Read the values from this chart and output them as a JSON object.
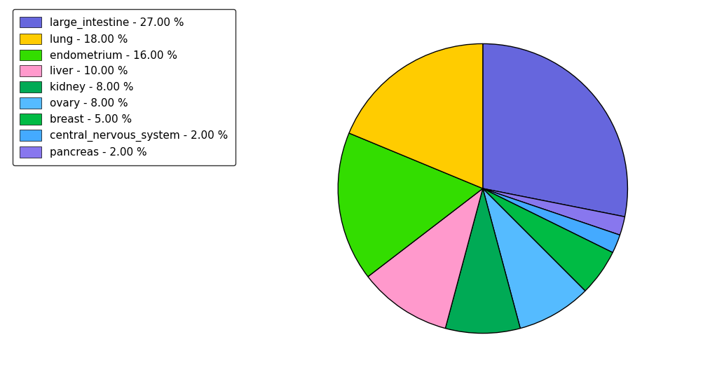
{
  "labels": [
    "large_intestine",
    "lung",
    "endometrium",
    "liver",
    "kidney",
    "ovary",
    "breast",
    "central_nervous_system",
    "pancreas"
  ],
  "values": [
    27.0,
    18.0,
    16.0,
    10.0,
    8.0,
    8.0,
    5.0,
    2.0,
    2.0
  ],
  "colors": [
    "#6666dd",
    "#ffcc00",
    "#33dd00",
    "#ff99cc",
    "#00aa55",
    "#55bbff",
    "#00bb44",
    "#44aaff",
    "#8877ee"
  ],
  "legend_labels": [
    "large_intestine - 27.00 %",
    "lung - 18.00 %",
    "endometrium - 16.00 %",
    "liver - 10.00 %",
    "kidney - 8.00 %",
    "ovary - 8.00 %",
    "breast - 5.00 %",
    "central_nervous_system - 2.00 %",
    "pancreas - 2.00 %"
  ],
  "pie_order": [
    "large_intestine",
    "pancreas",
    "central_nervous_system",
    "breast",
    "ovary",
    "kidney",
    "liver",
    "endometrium",
    "lung"
  ],
  "pie_values": [
    27.0,
    2.0,
    2.0,
    5.0,
    8.0,
    8.0,
    10.0,
    16.0,
    18.0
  ],
  "pie_colors": [
    "#6666dd",
    "#8877ee",
    "#44aaff",
    "#00bb44",
    "#55bbff",
    "#00aa55",
    "#ff99cc",
    "#33dd00",
    "#ffcc00"
  ],
  "startangle": 90,
  "figsize": [
    10.13,
    5.38
  ],
  "dpi": 100
}
